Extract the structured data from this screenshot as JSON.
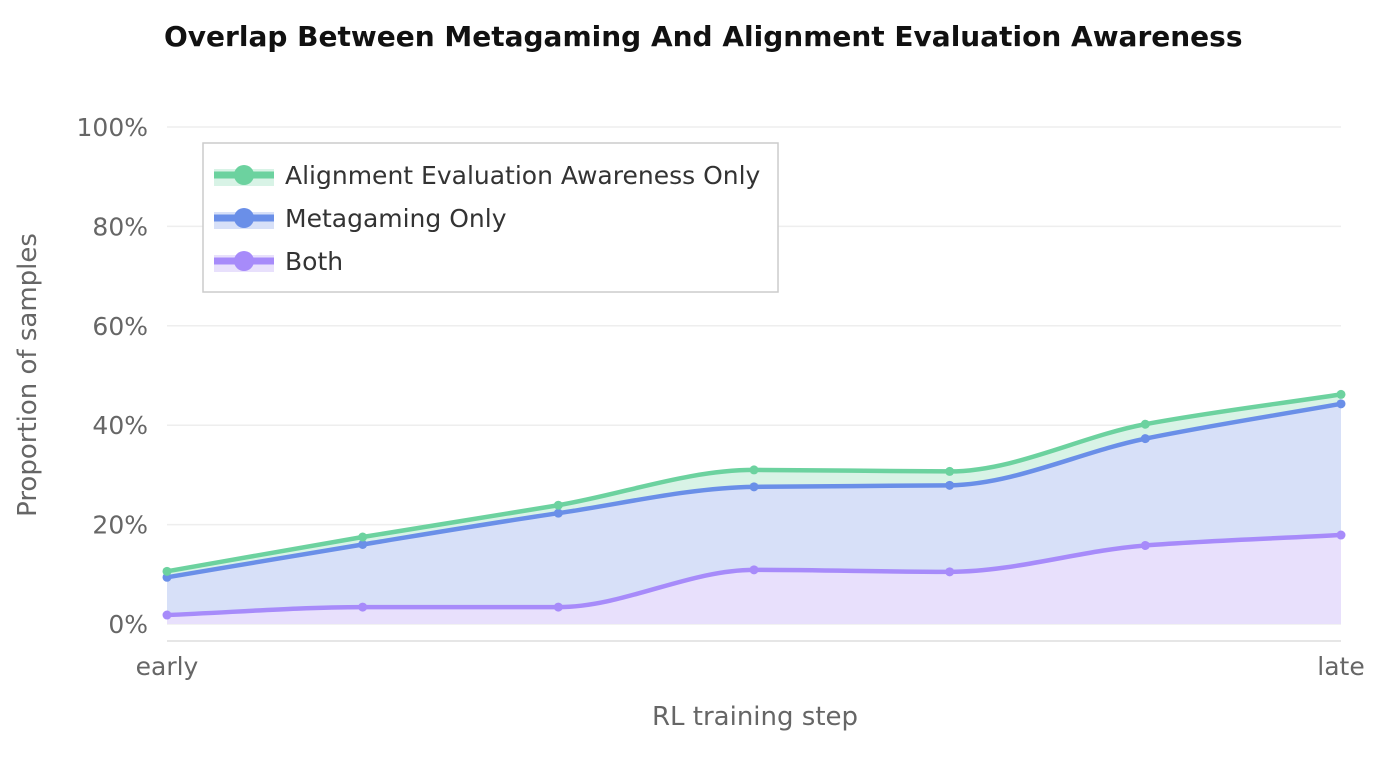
{
  "chart_data": {
    "type": "area",
    "stacked": true,
    "title": "Overlap Between Metagaming And Alignment Evaluation Awareness",
    "xlabel": "RL training step",
    "ylabel": "Proportion of samples",
    "x_tick_labels": [
      "early",
      "late"
    ],
    "y_tick_labels": [
      "0%",
      "20%",
      "40%",
      "60%",
      "80%",
      "100%"
    ],
    "ylim": [
      0,
      100
    ],
    "y_ticks": [
      0,
      20,
      40,
      60,
      80,
      100
    ],
    "grid": true,
    "legend_position": "top-left",
    "points": 7,
    "series": [
      {
        "name": "Both",
        "color": "#a78bfa",
        "fill": "#e8e0fc",
        "values": [
          1.8,
          3.4,
          3.4,
          10.9,
          10.5,
          15.8,
          17.9
        ]
      },
      {
        "name": "Metagaming Only",
        "color": "#6a8fe8",
        "fill": "#d7e0f8",
        "values": [
          7.6,
          12.6,
          18.9,
          16.7,
          17.4,
          21.5,
          26.4
        ]
      },
      {
        "name": "Alignment Evaluation Awareness Only",
        "color": "#6cd29f",
        "fill": "#d8f3e6",
        "values": [
          1.2,
          1.5,
          1.6,
          3.4,
          2.8,
          2.9,
          1.9
        ]
      }
    ],
    "legend_order": [
      "Alignment Evaluation Awareness Only",
      "Metagaming Only",
      "Both"
    ]
  }
}
